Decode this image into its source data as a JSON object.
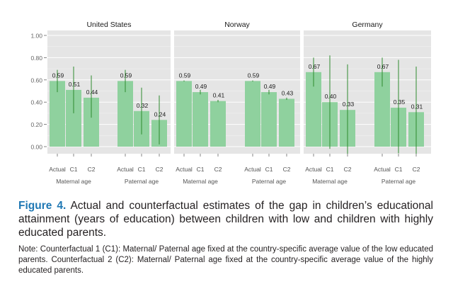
{
  "chart_data": {
    "type": "bar",
    "y_ticks": [
      "0.00",
      "0.20",
      "0.40",
      "0.60",
      "0.80",
      "1.00"
    ],
    "ylim": [
      0,
      1.0
    ],
    "grid": true,
    "bar_color": "#8fd19e",
    "error_color": "#2e8b2e",
    "panel_background": "#e5e5e5",
    "panels": [
      {
        "title": "United States",
        "groups": [
          {
            "label": "Maternal age",
            "categories": [
              "Actual",
              "C1",
              "C2"
            ],
            "values": [
              0.59,
              0.51,
              0.44
            ],
            "labels": [
              "0.59",
              "0.51",
              "0.44"
            ],
            "ci": [
              [
                0.49,
                0.69
              ],
              [
                0.3,
                0.72
              ],
              [
                0.26,
                0.64
              ]
            ]
          },
          {
            "label": "Paternal age",
            "categories": [
              "Actual",
              "C1",
              "C2"
            ],
            "values": [
              0.59,
              0.32,
              0.24
            ],
            "labels": [
              "0.59",
              "0.32",
              "0.24"
            ],
            "ci": [
              [
                0.49,
                0.69
              ],
              [
                0.11,
                0.53
              ],
              [
                0.02,
                0.46
              ]
            ]
          }
        ]
      },
      {
        "title": "Norway",
        "groups": [
          {
            "label": "Maternal age",
            "categories": [
              "Actual",
              "C1",
              "C2"
            ],
            "values": [
              0.59,
              0.49,
              0.41
            ],
            "labels": [
              "0.59",
              "0.49",
              "0.41"
            ],
            "ci": [
              [
                0.585,
                0.595
              ],
              [
                0.47,
                0.51
              ],
              [
                0.4,
                0.42
              ]
            ]
          },
          {
            "label": "Paternal age",
            "categories": [
              "Actual",
              "C1",
              "C2"
            ],
            "values": [
              0.59,
              0.49,
              0.43
            ],
            "labels": [
              "0.59",
              "0.49",
              "0.43"
            ],
            "ci": [
              [
                0.585,
                0.595
              ],
              [
                0.47,
                0.51
              ],
              [
                0.42,
                0.44
              ]
            ]
          }
        ]
      },
      {
        "title": "Germany",
        "groups": [
          {
            "label": "Maternal age",
            "categories": [
              "Actual",
              "C1",
              "C2"
            ],
            "values": [
              0.67,
              0.4,
              0.33
            ],
            "labels": [
              "0.67",
              "0.40",
              "0.33"
            ],
            "ci": [
              [
                0.54,
                0.8
              ],
              [
                -0.02,
                0.82
              ],
              [
                -0.08,
                0.74
              ]
            ]
          },
          {
            "label": "Paternal age",
            "categories": [
              "Actual",
              "C1",
              "C2"
            ],
            "values": [
              0.67,
              0.35,
              0.31
            ],
            "labels": [
              "0.67",
              "0.35",
              "0.31"
            ],
            "ci": [
              [
                0.54,
                0.8
              ],
              [
                -0.06,
                0.78
              ],
              [
                -0.1,
                0.72
              ]
            ]
          }
        ]
      }
    ]
  },
  "caption": {
    "figure_label": "Figure 4.",
    "text": "Actual and counterfactual estimates of the gap in children’s educational attainment (years of education) between children with low and children with highly educated parents."
  },
  "note": "Note: Counterfactual 1 (C1): Maternal/ Paternal age fixed at the country-specific average value of the low educated parents. Counterfactual 2 (C2): Maternal/ Paternal age fixed at the country-specific average value of the highly educated parents."
}
